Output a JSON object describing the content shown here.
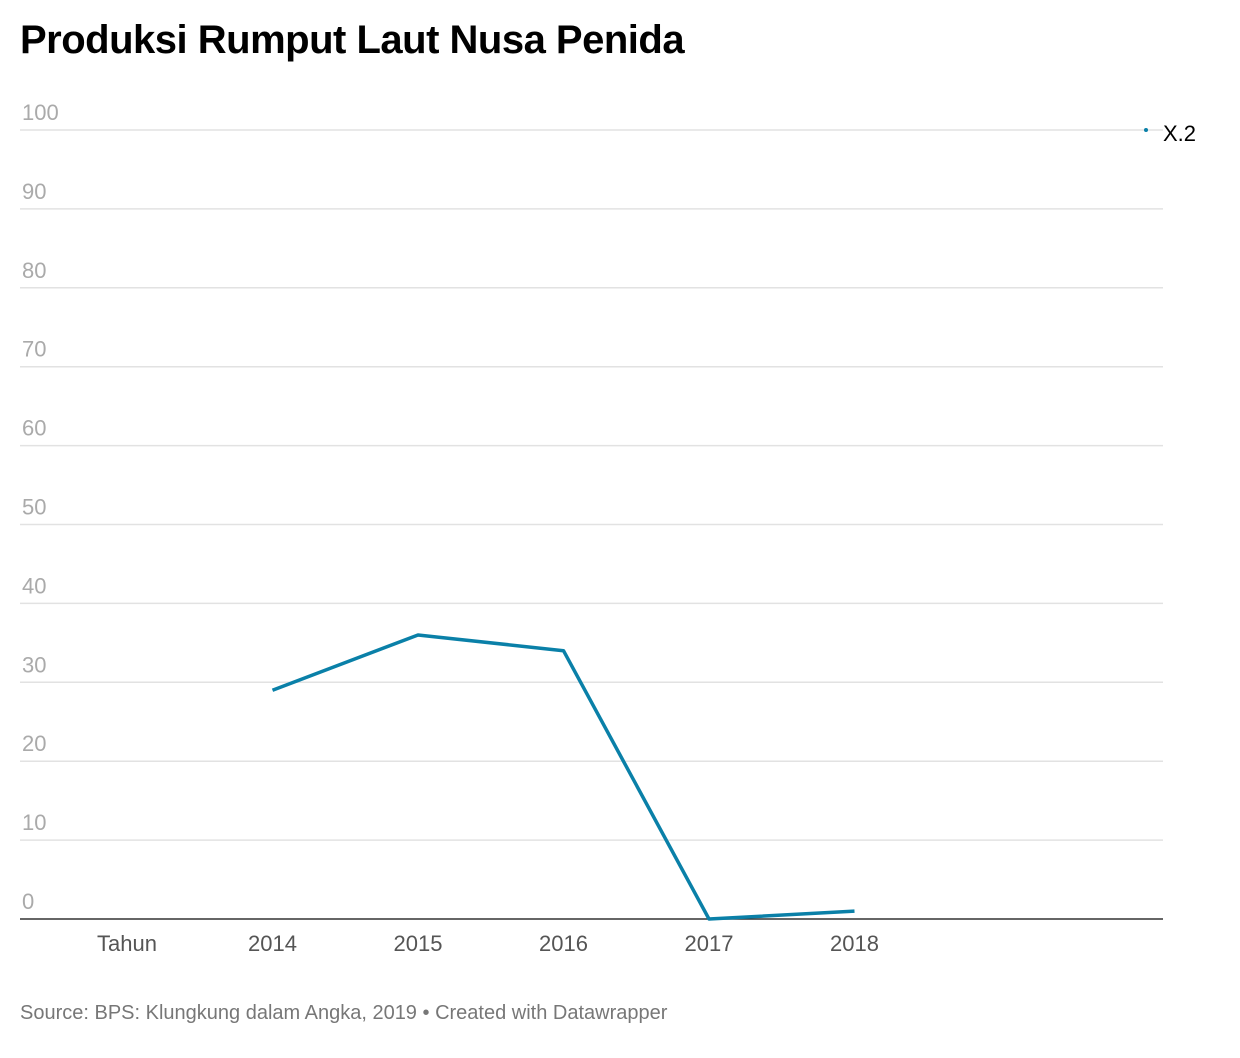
{
  "chart_data": {
    "type": "line",
    "title": "Produksi Rumput Laut Nusa Penida",
    "categories": [
      "Tahun",
      "2014",
      "2015",
      "2016",
      "2017",
      "2018"
    ],
    "series": [
      {
        "name": "X.2",
        "color": "#0a80a8",
        "values": [
          null,
          29,
          36,
          34,
          0,
          1
        ]
      }
    ],
    "ylim": [
      0,
      100
    ],
    "yticks": [
      0,
      10,
      20,
      30,
      40,
      50,
      60,
      70,
      80,
      90,
      100
    ],
    "xlabel": "",
    "ylabel": "",
    "grid": true,
    "legend": "top-right"
  },
  "footer": {
    "source": "Source: BPS: Klungkung dalam Angka, 2019",
    "separator": "•",
    "credit": "Created with Datawrapper"
  }
}
